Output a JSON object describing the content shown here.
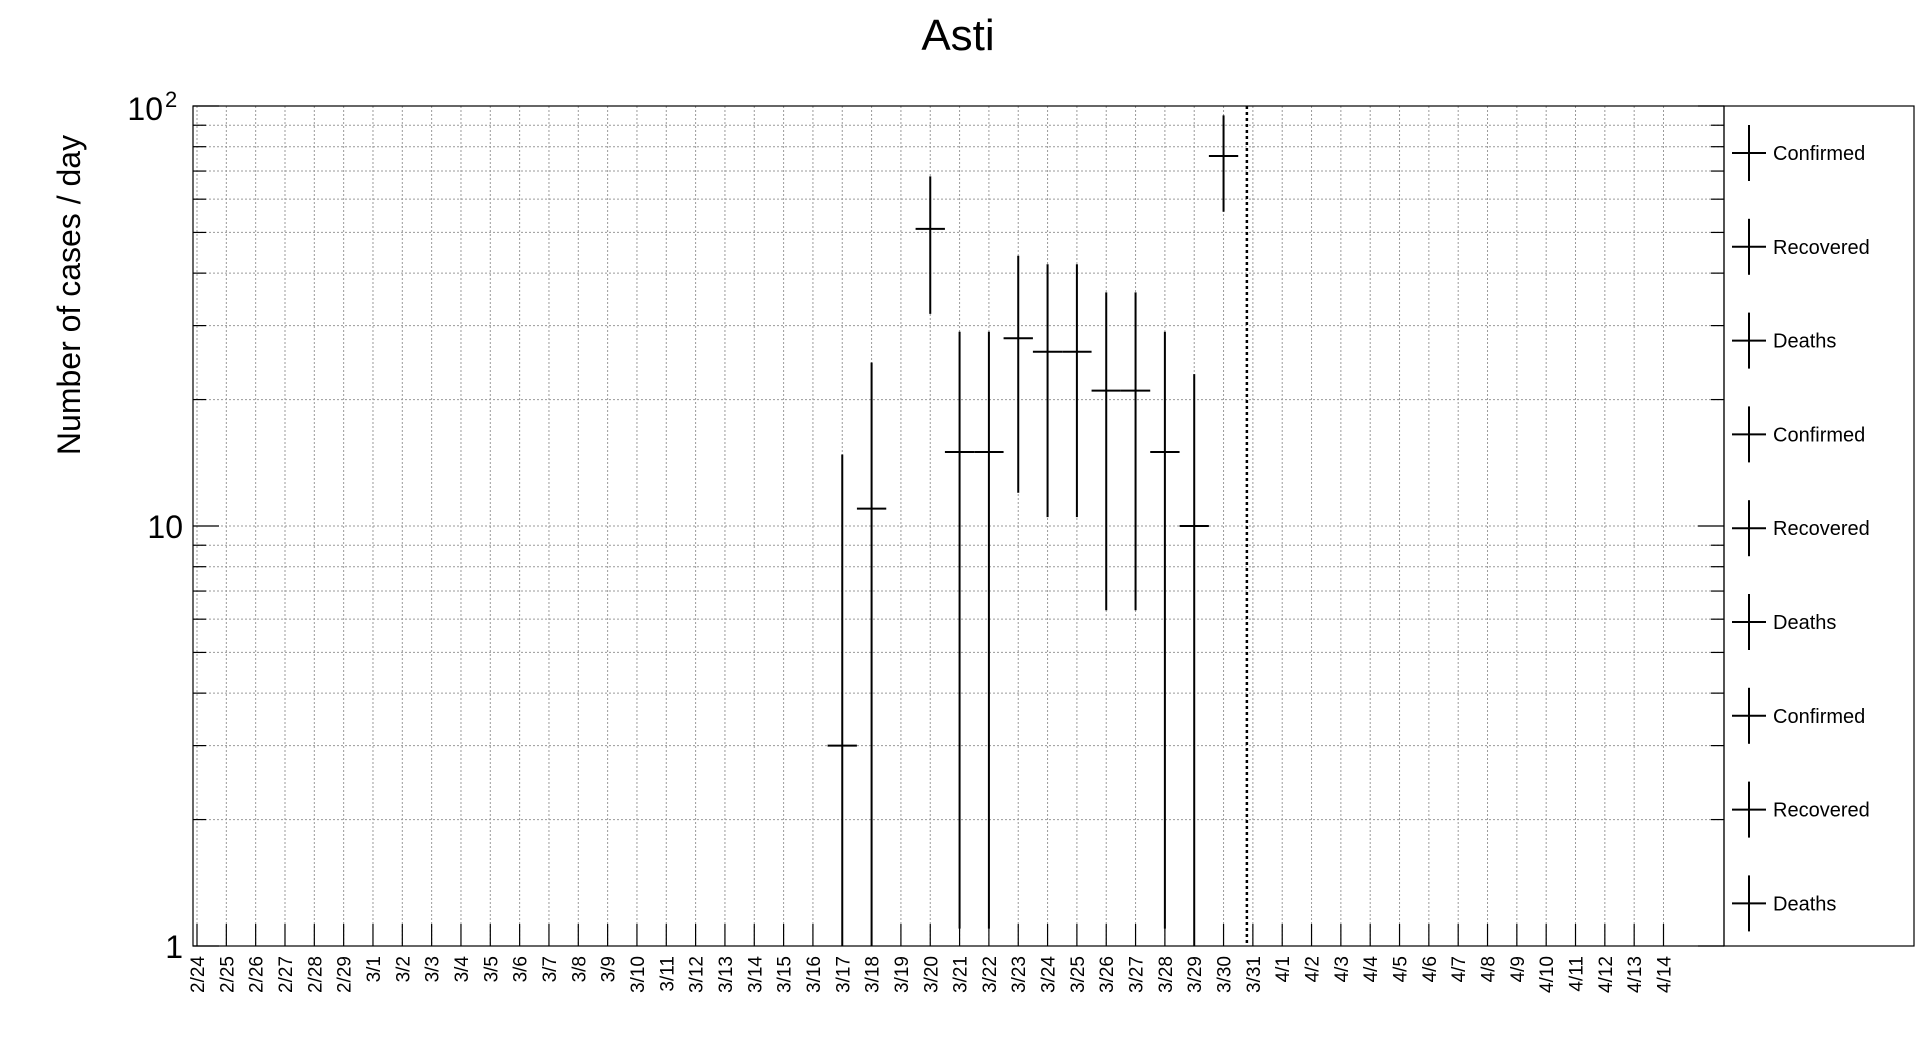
{
  "chart_data": {
    "type": "scatter",
    "title": "Asti",
    "ylabel": "Number of cases / day",
    "xlabel": "",
    "y_scale": "log",
    "ylim": [
      1,
      100
    ],
    "y_tick_labels": {
      "1": "1",
      "10": "10",
      "100_base": "10",
      "100_exp": "2"
    },
    "grid": true,
    "legend_position": "right",
    "categories": [
      "2/24",
      "2/25",
      "2/26",
      "2/27",
      "2/28",
      "2/29",
      "3/1",
      "3/2",
      "3/3",
      "3/4",
      "3/5",
      "3/6",
      "3/7",
      "3/8",
      "3/9",
      "3/10",
      "3/11",
      "3/12",
      "3/13",
      "3/14",
      "3/15",
      "3/16",
      "3/17",
      "3/18",
      "3/19",
      "3/20",
      "3/21",
      "3/22",
      "3/23",
      "3/24",
      "3/25",
      "3/26",
      "3/27",
      "3/28",
      "3/29",
      "3/30",
      "3/31",
      "4/1",
      "4/2",
      "4/3",
      "4/4",
      "4/5",
      "4/6",
      "4/7",
      "4/8",
      "4/9",
      "4/10",
      "4/11",
      "4/12",
      "4/13",
      "4/14"
    ],
    "series": [
      {
        "name": "Confirmed",
        "points": [
          {
            "x": "3/17",
            "y": 3,
            "y_low": 1,
            "y_high": 14.8,
            "x_half": 0.5
          },
          {
            "x": "3/18",
            "y": 11,
            "y_low": 1,
            "y_high": 24.5,
            "x_half": 0.5
          },
          {
            "x": "3/20",
            "y": 51,
            "y_low": 32,
            "y_high": 68,
            "x_half": 0.5
          },
          {
            "x": "3/21",
            "y": 15,
            "y_low": 1.1,
            "y_high": 29,
            "x_half": 0.5
          },
          {
            "x": "3/22",
            "y": 15,
            "y_low": 1.1,
            "y_high": 29,
            "x_half": 0.5
          },
          {
            "x": "3/23",
            "y": 28,
            "y_low": 12,
            "y_high": 44,
            "x_half": 0.5
          },
          {
            "x": "3/24",
            "y": 26,
            "y_low": 10.5,
            "y_high": 42,
            "x_half": 0.5
          },
          {
            "x": "3/25",
            "y": 26,
            "y_low": 10.5,
            "y_high": 42,
            "x_half": 0.5
          },
          {
            "x": "3/26",
            "y": 21,
            "y_low": 6.3,
            "y_high": 36,
            "x_half": 0.5
          },
          {
            "x": "3/27",
            "y": 21,
            "y_low": 6.3,
            "y_high": 36,
            "x_half": 0.5
          },
          {
            "x": "3/28",
            "y": 15,
            "y_low": 1.1,
            "y_high": 29,
            "x_half": 0.5
          },
          {
            "x": "3/29",
            "y": 10,
            "y_low": 1,
            "y_high": 23,
            "x_half": 0.5
          },
          {
            "x": "3/30",
            "y": 76,
            "y_low": 56,
            "y_high": 95,
            "x_half": 0.5
          }
        ]
      }
    ],
    "annotations": [
      {
        "type": "vertical-dotted-line",
        "x": "3/31"
      }
    ],
    "legend": [
      {
        "label": "Confirmed"
      },
      {
        "label": "Recovered"
      },
      {
        "label": "Deaths"
      },
      {
        "label": "Confirmed"
      },
      {
        "label": "Recovered"
      },
      {
        "label": "Deaths"
      },
      {
        "label": "Confirmed"
      },
      {
        "label": "Recovered"
      },
      {
        "label": "Deaths"
      }
    ]
  }
}
